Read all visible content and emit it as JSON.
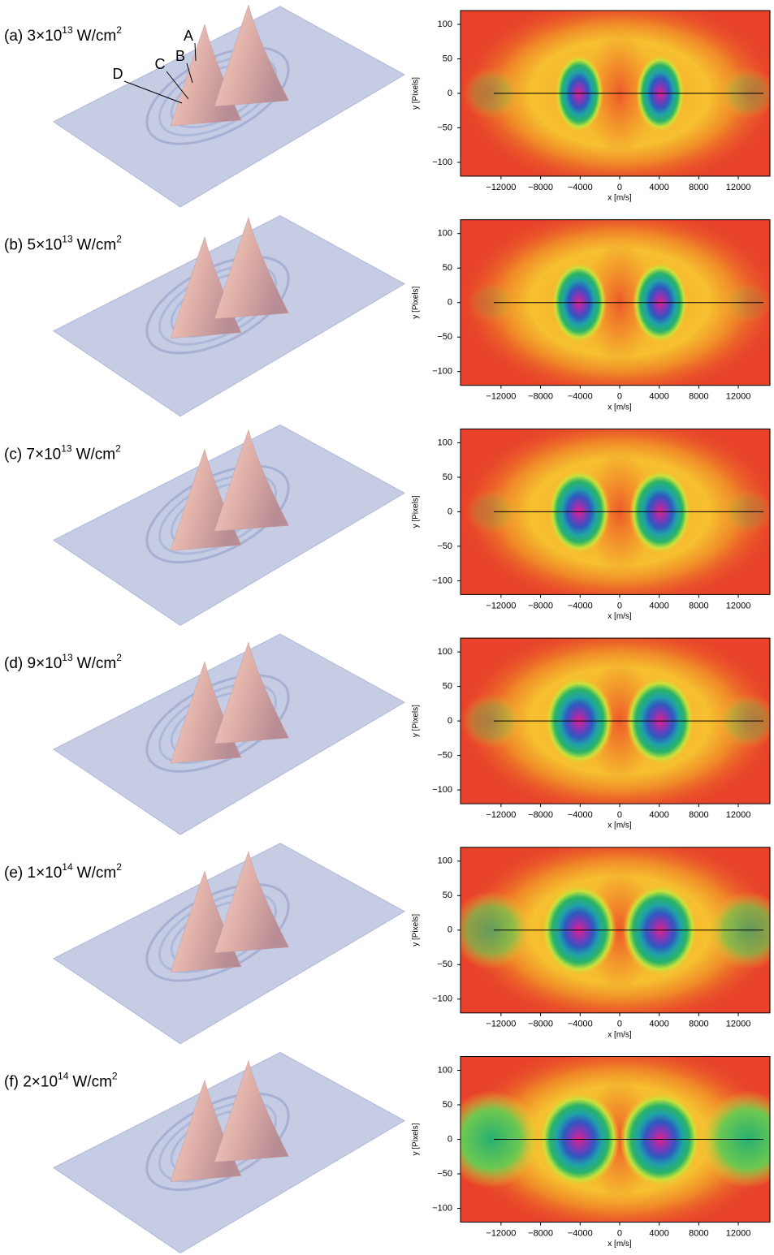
{
  "chart_data": [
    {
      "type": "heatmap",
      "title": "(a) 3×10",
      "title_exponent": "13",
      "title_unit": "W/cm",
      "title_unit_exponent": "2",
      "annotations": [
        "A",
        "B",
        "C",
        "D"
      ],
      "xlabel": "x [m/s]",
      "ylabel": "y [Pixels]",
      "xlim": [
        -16100,
        15200
      ],
      "ylim": [
        -120,
        120
      ],
      "xticks": [
        {
          "value": -12000,
          "label": "−12000"
        },
        {
          "value": -8000,
          "label": "−8000"
        },
        {
          "value": -4000,
          "label": "−4000"
        },
        0,
        4000,
        8000,
        12000
      ],
      "yticks": [
        100,
        50,
        0,
        {
          "value": -50,
          "label": "−50"
        },
        {
          "value": -100,
          "label": "−100"
        }
      ]
    },
    {
      "type": "heatmap",
      "title": "(b) 5×10",
      "title_exponent": "13",
      "title_unit": "W/cm",
      "title_unit_exponent": "2",
      "xlabel": "x [m/s]",
      "ylabel": "y [Pixels]",
      "xlim": [
        -16100,
        15200
      ],
      "ylim": [
        -120,
        120
      ],
      "xticks": [
        {
          "value": -12000,
          "label": "−12000"
        },
        {
          "value": -8000,
          "label": "−8000"
        },
        {
          "value": -4000,
          "label": "−4000"
        },
        0,
        4000,
        8000,
        12000
      ],
      "yticks": [
        100,
        50,
        0,
        {
          "value": -50,
          "label": "−50"
        },
        {
          "value": -100,
          "label": "−100"
        }
      ]
    },
    {
      "type": "heatmap",
      "title": "(c) 7×10",
      "title_exponent": "13",
      "title_unit": "W/cm",
      "title_unit_exponent": "2",
      "xlabel": "x [m/s]",
      "ylabel": "y [Pixels]",
      "xlim": [
        -16100,
        15200
      ],
      "ylim": [
        -120,
        120
      ],
      "xticks": [
        {
          "value": -12000,
          "label": "−12000"
        },
        {
          "value": -8000,
          "label": "−8000"
        },
        {
          "value": -4000,
          "label": "−4000"
        },
        0,
        4000,
        8000,
        12000
      ],
      "yticks": [
        100,
        50,
        0,
        {
          "value": -50,
          "label": "−50"
        },
        {
          "value": -100,
          "label": "−100"
        }
      ]
    },
    {
      "type": "heatmap",
      "title": "(d) 9×10",
      "title_exponent": "13",
      "title_unit": "W/cm",
      "title_unit_exponent": "2",
      "xlabel": "x [m/s]",
      "ylabel": "y [Pixels]",
      "xlim": [
        -16100,
        15200
      ],
      "ylim": [
        -120,
        120
      ],
      "xticks": [
        {
          "value": -12000,
          "label": "−12000"
        },
        {
          "value": -8000,
          "label": "−8000"
        },
        {
          "value": -4000,
          "label": "−4000"
        },
        0,
        4000,
        8000,
        12000
      ],
      "yticks": [
        100,
        50,
        0,
        {
          "value": -50,
          "label": "−50"
        },
        {
          "value": -100,
          "label": "−100"
        }
      ]
    },
    {
      "type": "heatmap",
      "title": "(e) 1×10",
      "title_exponent": "14",
      "title_unit": "W/cm",
      "title_unit_exponent": "2",
      "xlabel": "x [m/s]",
      "ylabel": "y [Pixels]",
      "xlim": [
        -16100,
        15200
      ],
      "ylim": [
        -120,
        120
      ],
      "xticks": [
        {
          "value": -12000,
          "label": "−12000"
        },
        {
          "value": -8000,
          "label": "−8000"
        },
        {
          "value": -4000,
          "label": "−4000"
        },
        0,
        4000,
        8000,
        12000
      ],
      "yticks": [
        100,
        50,
        0,
        {
          "value": -50,
          "label": "−50"
        },
        {
          "value": -100,
          "label": "−100"
        }
      ]
    },
    {
      "type": "heatmap",
      "title": "(f) 2×10",
      "title_exponent": "14",
      "title_unit": "W/cm",
      "title_unit_exponent": "2",
      "xlabel": "x [m/s]",
      "ylabel": "y [Pixels]",
      "xlim": [
        -16100,
        15200
      ],
      "ylim": [
        -120,
        120
      ],
      "xticks": [
        {
          "value": -12000,
          "label": "−12000"
        },
        {
          "value": -8000,
          "label": "−8000"
        },
        {
          "value": -4000,
          "label": "−4000"
        },
        0,
        4000,
        8000,
        12000
      ],
      "yticks": [
        100,
        50,
        0,
        {
          "value": -50,
          "label": "−50"
        },
        {
          "value": -100,
          "label": "−100"
        }
      ]
    }
  ]
}
